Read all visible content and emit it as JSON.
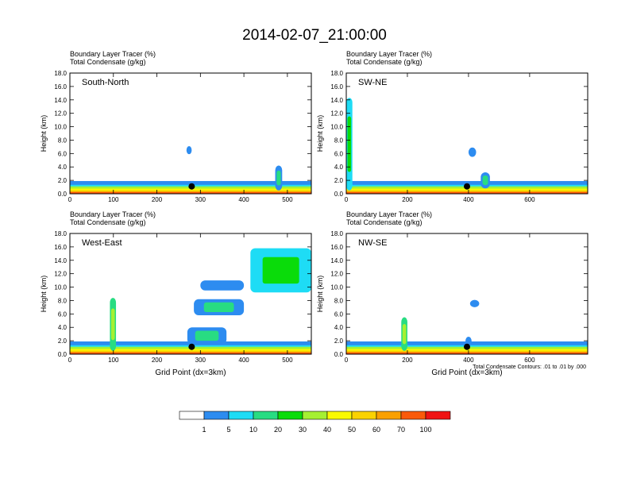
{
  "title": "2014-02-07_21:00:00",
  "footnote": "Total Condensate Contours: .01 to .01 by .000",
  "colorbar": {
    "colors": [
      "#ffffff",
      "#2d8cf0",
      "#1edcf5",
      "#28dc82",
      "#0adc0a",
      "#a5f032",
      "#fafa00",
      "#fad200",
      "#faa000",
      "#fa5a0a",
      "#f01414"
    ],
    "labels": [
      "1",
      "5",
      "10",
      "20",
      "30",
      "40",
      "50",
      "60",
      "70",
      "100"
    ]
  },
  "chart_data": [
    {
      "type": "contour",
      "panel_label": "South-North",
      "subtitle_lines": [
        "Boundary Layer Tracer   (%)",
        "Total Condensate   (g/kg)"
      ],
      "xlabel": "",
      "ylabel": "Height (km)",
      "xlim": [
        0,
        555
      ],
      "ylim": [
        0,
        18
      ],
      "xticks": [
        0,
        100,
        200,
        300,
        400,
        500
      ],
      "yticks": [
        "0.0",
        "2.0",
        "4.0",
        "6.0",
        "8.0",
        "10.0",
        "12.0",
        "14.0",
        "16.0",
        "18.0"
      ],
      "marker": {
        "x": 280,
        "y": 1.1
      },
      "features": [
        {
          "x0": 0,
          "x1": 555,
          "top": 1.9,
          "level": 1
        },
        {
          "x0": 0,
          "x1": 555,
          "top": 1.1,
          "level": 5
        },
        {
          "x0": 268,
          "x1": 280,
          "bottom": 5.9,
          "top": 7.1,
          "level": 1
        },
        {
          "x0": 472,
          "x1": 488,
          "bottom": 0.5,
          "top": 4.2,
          "level": 3
        }
      ]
    },
    {
      "type": "contour",
      "panel_label": "SW-NE",
      "subtitle_lines": [
        "Boundary Layer Tracer   (%)",
        "Total Condensate   (g/kg)"
      ],
      "xlabel": "",
      "ylabel": "Height (km)",
      "xlim": [
        0,
        790
      ],
      "ylim": [
        0,
        18
      ],
      "xticks": [
        0,
        200,
        400,
        600
      ],
      "yticks": [
        "0.0",
        "2.0",
        "4.0",
        "6.0",
        "8.0",
        "10.0",
        "12.0",
        "14.0",
        "16.0",
        "18.0"
      ],
      "marker": {
        "x": 395,
        "y": 1.1
      },
      "features": [
        {
          "x0": 0,
          "x1": 790,
          "top": 1.9,
          "level": 1
        },
        {
          "x0": 0,
          "x1": 790,
          "top": 1.1,
          "level": 5
        },
        {
          "x0": 0,
          "x1": 20,
          "bottom": 0.5,
          "top": 14.3,
          "level": 4
        },
        {
          "x0": 400,
          "x1": 425,
          "bottom": 5.5,
          "top": 6.9,
          "level": 1
        },
        {
          "x0": 440,
          "x1": 470,
          "bottom": 0.8,
          "top": 3.2,
          "level": 3
        }
      ]
    },
    {
      "type": "contour",
      "panel_label": "West-East",
      "subtitle_lines": [
        "Boundary Layer Tracer   (%)",
        "Total Condensate   (g/kg)"
      ],
      "xlabel": "Grid Point (dx=3km)",
      "ylabel": "Height (km)",
      "xlim": [
        0,
        555
      ],
      "ylim": [
        0,
        18
      ],
      "xticks": [
        0,
        100,
        200,
        300,
        400,
        500
      ],
      "yticks": [
        "0.0",
        "2.0",
        "4.0",
        "6.0",
        "8.0",
        "10.0",
        "12.0",
        "14.0",
        "16.0",
        "18.0"
      ],
      "marker": {
        "x": 280,
        "y": 1.1
      },
      "features": [
        {
          "x0": 0,
          "x1": 555,
          "top": 1.9,
          "level": 1
        },
        {
          "x0": 0,
          "x1": 555,
          "top": 1.1,
          "level": 5
        },
        {
          "x0": 92,
          "x1": 106,
          "bottom": 0.5,
          "top": 8.4,
          "level": 5
        },
        {
          "x0": 285,
          "x1": 400,
          "bottom": 5.8,
          "top": 8.2,
          "level": 3
        },
        {
          "x0": 415,
          "x1": 555,
          "bottom": 9.2,
          "top": 15.8,
          "level": 4
        },
        {
          "x0": 300,
          "x1": 400,
          "bottom": 9.5,
          "top": 11.0,
          "level": 1
        },
        {
          "x0": 270,
          "x1": 360,
          "bottom": 1.5,
          "top": 4.0,
          "level": 3
        }
      ]
    },
    {
      "type": "contour",
      "panel_label": "NW-SE",
      "subtitle_lines": [
        "Boundary Layer Tracer   (%)",
        "Total Condensate   (g/kg)"
      ],
      "xlabel": "Grid Point (dx=3km)",
      "ylabel": "Height (km)",
      "xlim": [
        0,
        790
      ],
      "ylim": [
        0,
        18
      ],
      "xticks": [
        0,
        200,
        400,
        600
      ],
      "yticks": [
        "0.0",
        "2.0",
        "4.0",
        "6.0",
        "8.0",
        "10.0",
        "12.0",
        "14.0",
        "16.0",
        "18.0"
      ],
      "marker": {
        "x": 395,
        "y": 1.1
      },
      "features": [
        {
          "x0": 0,
          "x1": 790,
          "top": 1.9,
          "level": 1
        },
        {
          "x0": 0,
          "x1": 790,
          "top": 1.1,
          "level": 5
        },
        {
          "x0": 180,
          "x1": 200,
          "bottom": 0.5,
          "top": 5.5,
          "level": 5
        },
        {
          "x0": 405,
          "x1": 435,
          "bottom": 7.0,
          "top": 8.1,
          "level": 1
        },
        {
          "x0": 390,
          "x1": 410,
          "bottom": 1.3,
          "top": 2.6,
          "level": 1
        }
      ]
    }
  ]
}
